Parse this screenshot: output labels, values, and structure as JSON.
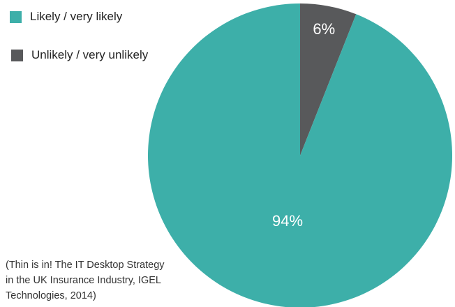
{
  "chart_data": {
    "type": "pie",
    "slices": [
      {
        "name": "Likely / very likely",
        "value": 94,
        "label": "94%",
        "color": "#3dafa9"
      },
      {
        "name": "Unlikely / very unlikely",
        "value": 6,
        "label": "6%",
        "color": "#58595b"
      }
    ],
    "legend_position": "top-left"
  },
  "source_note": "(Thin is in! The IT Desktop Strategy in the UK Insurance Industry, IGEL Technologies, 2014)"
}
